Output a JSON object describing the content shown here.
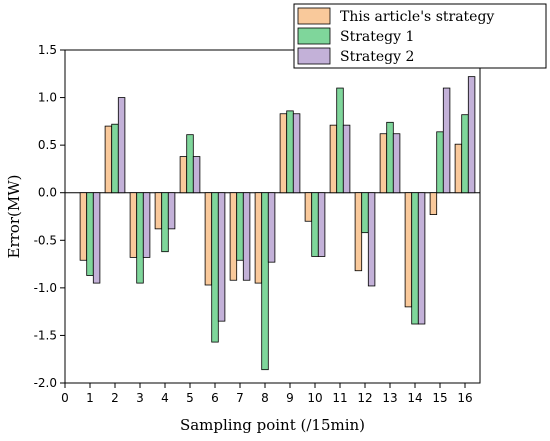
{
  "chart_data": {
    "type": "bar",
    "xlabel": "Sampling point (/15min)",
    "ylabel": "Error(MW)",
    "ylim": [
      -2.0,
      1.5
    ],
    "xlim": [
      0,
      16.6
    ],
    "xticks": [
      0,
      1,
      2,
      3,
      4,
      5,
      6,
      7,
      8,
      9,
      10,
      11,
      12,
      13,
      14,
      15,
      16
    ],
    "yticks": [
      -2.0,
      -1.5,
      -1.0,
      -0.5,
      0.0,
      0.5,
      1.0,
      1.5
    ],
    "ytick_labels": [
      "-2.0",
      "-1.5",
      "-1.0",
      "-0.5",
      "0.0",
      "0.5",
      "1.0",
      "1.5"
    ],
    "xtick_labels": [
      "0",
      "1",
      "2",
      "3",
      "4",
      "5",
      "6",
      "7",
      "8",
      "9",
      "10",
      "11",
      "12",
      "13",
      "14",
      "15",
      "16"
    ],
    "categories": [
      1,
      2,
      3,
      4,
      5,
      6,
      7,
      8,
      9,
      10,
      11,
      12,
      13,
      14,
      15,
      16
    ],
    "legend_position": "top-right",
    "grid": false,
    "series": [
      {
        "name": "This article's strategy",
        "color": "#f9c99b",
        "values": [
          -0.71,
          0.7,
          -0.68,
          -0.38,
          0.38,
          -0.97,
          -0.92,
          -0.95,
          0.83,
          -0.3,
          0.71,
          -0.82,
          0.62,
          -1.2,
          -0.23,
          0.51
        ]
      },
      {
        "name": "Strategy 1",
        "color": "#7fd69b",
        "values": [
          -0.87,
          0.72,
          -0.95,
          -0.62,
          0.61,
          -1.57,
          -0.71,
          -1.86,
          0.86,
          -0.67,
          1.1,
          -0.42,
          0.74,
          -1.38,
          0.64,
          0.82
        ]
      },
      {
        "name": "Strategy 2",
        "color": "#c3b1d8",
        "values": [
          -0.95,
          1.0,
          -0.68,
          -0.38,
          0.38,
          -1.35,
          -0.92,
          -0.73,
          0.83,
          -0.67,
          0.71,
          -0.98,
          0.62,
          -1.38,
          1.1,
          1.22
        ]
      }
    ]
  }
}
